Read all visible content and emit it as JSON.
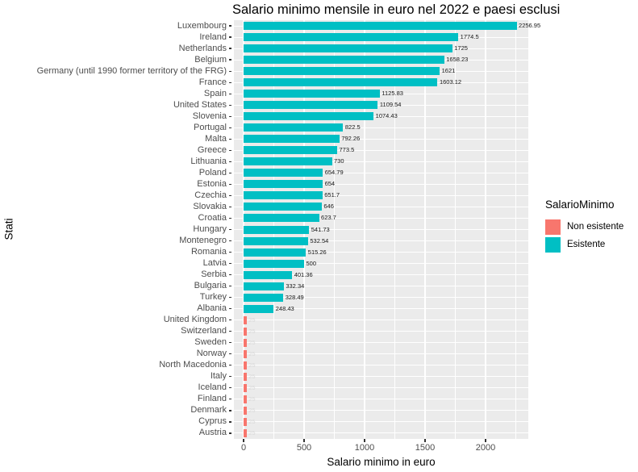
{
  "title": "Salario minimo mensile in euro nel 2022 e paesi esclusi",
  "axes": {
    "x_title": "Salario minimo in euro",
    "y_title": "Stati",
    "x_tick_labels": [
      "0",
      "500",
      "1000",
      "1500",
      "2000"
    ]
  },
  "legend": {
    "title": "SalarioMinimo",
    "items": [
      {
        "label": "Non esistente",
        "color": "#F8766D"
      },
      {
        "label": "Esistente",
        "color": "#00BFC4"
      }
    ]
  },
  "colors": {
    "esistente": "#00BFC4",
    "non_esistente": "#F8766D",
    "panel_background": "#EBEBEB",
    "gridline": "#FFFFFF",
    "axis_text": "#4D4D4D",
    "tick_mark": "#333333"
  },
  "chart_data": {
    "type": "bar",
    "orientation": "horizontal",
    "title": "Salario minimo mensile in euro nel 2022 e paesi esclusi",
    "xlabel": "Salario minimo in euro",
    "ylabel": "Stati",
    "xlim": [
      0,
      2353
    ],
    "grid": {
      "major_x": [
        0,
        500,
        1000,
        1500,
        2000
      ],
      "minor_x": [
        250,
        750,
        1250,
        1750,
        2250
      ]
    },
    "legend_title": "SalarioMinimo",
    "legend_position": "right",
    "categories": [
      "Luxembourg",
      "Ireland",
      "Netherlands",
      "Belgium",
      "Germany (until 1990 former territory of the FRG)",
      "France",
      "Spain",
      "United States",
      "Slovenia",
      "Portugal",
      "Malta",
      "Greece",
      "Lithuania",
      "Poland",
      "Estonia",
      "Czechia",
      "Slovakia",
      "Croatia",
      "Hungary",
      "Montenegro",
      "Romania",
      "Latvia",
      "Serbia",
      "Bulgaria",
      "Turkey",
      "Albania",
      "United Kingdom",
      "Switzerland",
      "Sweden",
      "Norway",
      "North Macedonia",
      "Italy",
      "Iceland",
      "Finland",
      "Denmark",
      "Cyprus",
      "Austria"
    ],
    "values": [
      2256.95,
      1774.5,
      1725,
      1658.23,
      1621,
      1603.12,
      1125.83,
      1109.54,
      1074.43,
      822.5,
      792.26,
      773.5,
      730,
      654.79,
      654,
      651.7,
      646,
      623.7,
      541.73,
      532.54,
      515.26,
      500,
      401.36,
      332.34,
      328.49,
      248.43,
      25,
      25,
      25,
      25,
      25,
      25,
      25,
      25,
      25,
      25,
      25
    ],
    "bar_labels": [
      "2256.95",
      "1774.5",
      "1725",
      "1658.23",
      "1621",
      "1603.12",
      "1125.83",
      "1109.54",
      "1074.43",
      "822.5",
      "792.26",
      "773.5",
      "730",
      "654.79",
      "654",
      "651.7",
      "646",
      "623.7",
      "541.73",
      "532.54",
      "515.26",
      "500",
      "401.36",
      "332.34",
      "328.49",
      "248.43",
      "25",
      "25",
      "25",
      "25",
      "25",
      "25",
      "25",
      "25",
      "25",
      "25",
      "25"
    ],
    "groups": [
      "Esistente",
      "Esistente",
      "Esistente",
      "Esistente",
      "Esistente",
      "Esistente",
      "Esistente",
      "Esistente",
      "Esistente",
      "Esistente",
      "Esistente",
      "Esistente",
      "Esistente",
      "Esistente",
      "Esistente",
      "Esistente",
      "Esistente",
      "Esistente",
      "Esistente",
      "Esistente",
      "Esistente",
      "Esistente",
      "Esistente",
      "Esistente",
      "Esistente",
      "Esistente",
      "Non esistente",
      "Non esistente",
      "Non esistente",
      "Non esistente",
      "Non esistente",
      "Non esistente",
      "Non esistente",
      "Non esistente",
      "Non esistente",
      "Non esistente",
      "Non esistente"
    ]
  }
}
